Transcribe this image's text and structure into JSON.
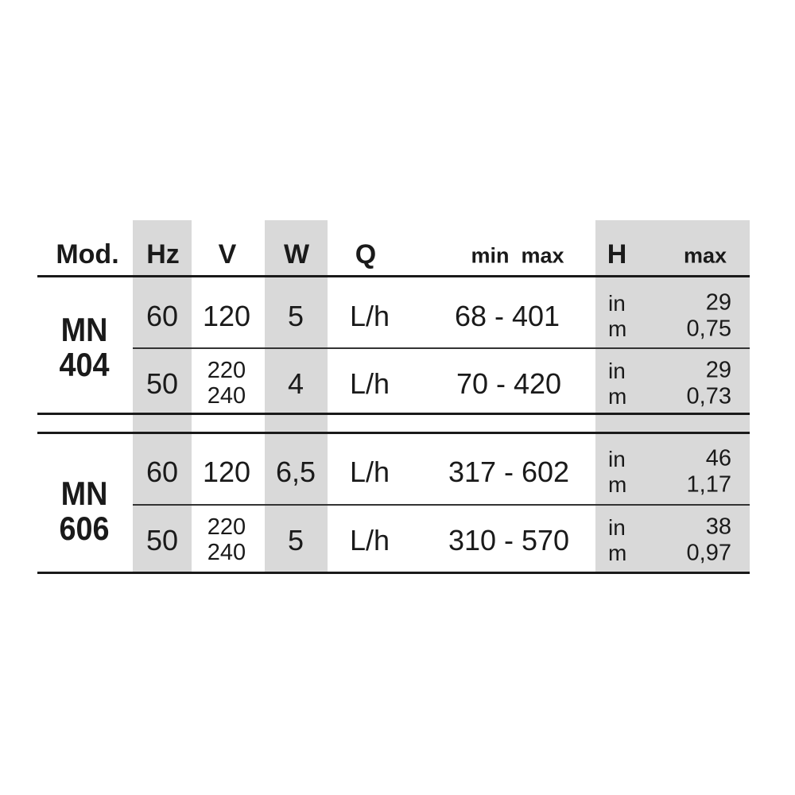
{
  "header": {
    "model": "Mod.",
    "hz": "Hz",
    "v": "V",
    "w": "W",
    "q": "Q",
    "min_max": "min  max",
    "h": "H",
    "h_max": "max"
  },
  "models": [
    {
      "name_line1": "MN",
      "name_line2": "404",
      "rows": [
        {
          "hz": "60",
          "v": "120",
          "v2": "",
          "w": "5",
          "unit": "L/h",
          "range": "68 - 401",
          "h_units": "in",
          "h_units2": "m",
          "h_in": "29",
          "h_m": "0,75"
        },
        {
          "hz": "50",
          "v": "220",
          "v2": "240",
          "w": "4",
          "unit": "L/h",
          "range": "70 - 420",
          "h_units": "in",
          "h_units2": "m",
          "h_in": "29",
          "h_m": "0,73"
        }
      ]
    },
    {
      "name_line1": "MN",
      "name_line2": "606",
      "rows": [
        {
          "hz": "60",
          "v": "120",
          "v2": "",
          "w": "6,5",
          "unit": "L/h",
          "range": "317 - 602",
          "h_units": "in",
          "h_units2": "m",
          "h_in": "46",
          "h_m": "1,17"
        },
        {
          "hz": "50",
          "v": "220",
          "v2": "240",
          "w": "5",
          "unit": "L/h",
          "range": "310 - 570",
          "h_units": "in",
          "h_units2": "m",
          "h_in": "38",
          "h_m": "0,97"
        }
      ]
    }
  ],
  "colors": {
    "shade": "#d9d9d9",
    "text": "#1a1a1a"
  }
}
